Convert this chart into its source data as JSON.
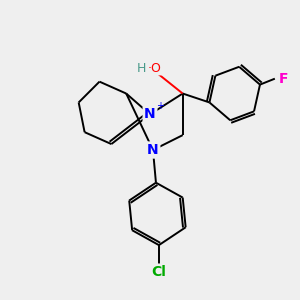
{
  "bg_color": "#efefef",
  "atom_colors": {
    "N_plus": "#0000ff",
    "N": "#0000ff",
    "O": "#ff0000",
    "H": "#4a9a8a",
    "F": "#ff00cc",
    "Cl": "#00aa00",
    "C": "#000000"
  },
  "figsize": [
    3.0,
    3.0
  ],
  "dpi": 100
}
